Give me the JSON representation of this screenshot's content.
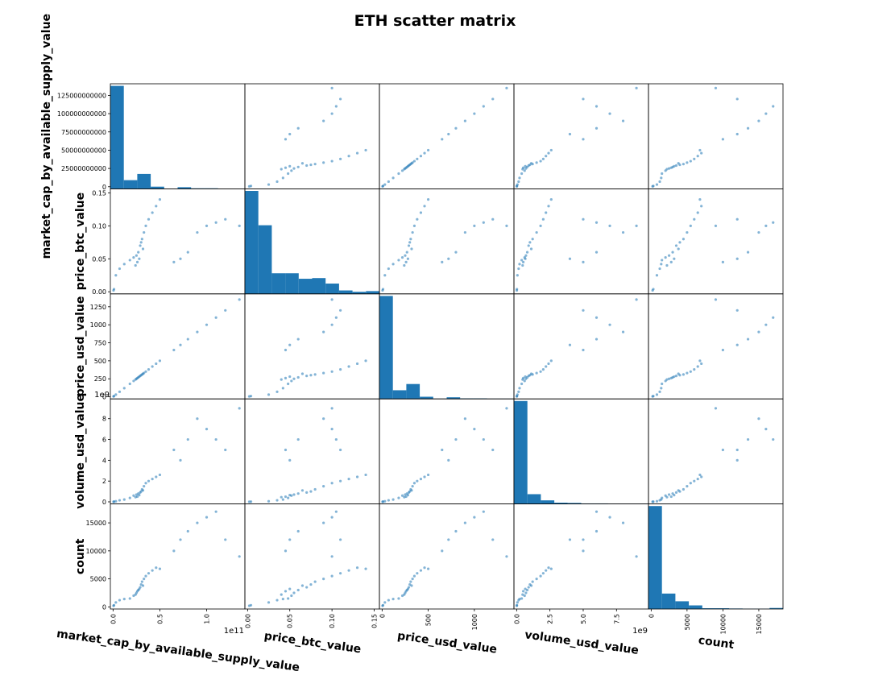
{
  "title": "ETH scatter matrix",
  "chart_data": {
    "type": "scatter",
    "subtype": "scatter-matrix",
    "title": "ETH scatter matrix",
    "grid": false,
    "colors": {
      "marker": "#1f77b4",
      "hist": "#1f77b4"
    },
    "variables": [
      {
        "name": "market_cap_by_available_supply_value",
        "range": [
          0,
          138000000000
        ],
        "x_ticks": {
          "values": [
            0,
            50000000000,
            100000000000
          ],
          "labels": [
            "0.0",
            "0.5",
            "1.0"
          ],
          "offset": "1e11"
        },
        "y_ticks": {
          "values": [
            0,
            25000000000,
            50000000000,
            75000000000,
            100000000000,
            125000000000
          ],
          "labels": [
            "0",
            "25000000000",
            "50000000000",
            "75000000000",
            "100000000000",
            "125000000000"
          ]
        },
        "hist_counts": [
          380,
          32,
          55,
          8,
          1,
          6,
          2,
          2,
          1,
          1
        ]
      },
      {
        "name": "price_btc_value",
        "range": [
          0,
          0.153
        ],
        "x_ticks": {
          "values": [
            0,
            0.05,
            0.1,
            0.15
          ],
          "labels": [
            "0.00",
            "0.05",
            "0.10",
            "0.15"
          ]
        },
        "y_ticks": {
          "values": [
            0,
            0.05,
            0.1,
            0.15
          ],
          "labels": [
            "0.00",
            "0.05",
            "0.10",
            "0.15"
          ]
        },
        "hist_counts": [
          150,
          100,
          30,
          30,
          22,
          23,
          15,
          5,
          3,
          4
        ]
      },
      {
        "name": "price_usd_value",
        "range": [
          0,
          1400
        ],
        "x_ticks": {
          "values": [
            0,
            500,
            1000
          ],
          "labels": [
            "0",
            "500",
            "1000"
          ]
        },
        "y_ticks": {
          "values": [
            0,
            250,
            500,
            750,
            1000,
            1250
          ],
          "labels": [
            "0",
            "250",
            "500",
            "750",
            "1000",
            "1250"
          ]
        },
        "hist_counts": [
          380,
          32,
          55,
          8,
          1,
          6,
          2,
          2,
          1,
          1
        ]
      },
      {
        "name": "volume_usd_value",
        "range": [
          0,
          9700000000
        ],
        "x_ticks": {
          "values": [
            0,
            2500000000,
            5000000000,
            7500000000
          ],
          "labels": [
            "0.0",
            "2.5",
            "5.0",
            "7.5"
          ],
          "offset": "1e9"
        },
        "y_ticks": {
          "values": [
            0,
            2000000000,
            4000000000,
            6000000000,
            8000000000
          ],
          "labels": [
            "0",
            "2",
            "4",
            "6",
            "8"
          ],
          "offset": "1e9"
        },
        "hist_counts": [
          400,
          38,
          14,
          5,
          4,
          2,
          2,
          1,
          1,
          1
        ]
      },
      {
        "name": "count",
        "range": [
          0,
          18000
        ],
        "x_ticks": {
          "values": [
            0,
            5000,
            10000,
            15000
          ],
          "labels": [
            "0",
            "5000",
            "10000",
            "15000"
          ]
        },
        "y_ticks": {
          "values": [
            0,
            5000,
            10000,
            15000
          ],
          "labels": [
            "0",
            "5000",
            "10000",
            "15000"
          ]
        },
        "hist_counts": [
          400,
          60,
          30,
          14,
          3,
          3,
          2,
          1,
          1,
          4
        ]
      }
    ],
    "points": [
      [
        3000000000,
        0.025,
        30,
        60000000,
        800
      ],
      [
        7000000000,
        0.035,
        70,
        150000000,
        1200
      ],
      [
        12000000000,
        0.042,
        120,
        220000000,
        1400
      ],
      [
        18000000000,
        0.048,
        180,
        380000000,
        1500
      ],
      [
        22000000000,
        0.052,
        220,
        600000000,
        2000
      ],
      [
        25000000000,
        0.055,
        250,
        700000000,
        2500
      ],
      [
        27000000000,
        0.06,
        270,
        800000000,
        3000
      ],
      [
        29000000000,
        0.07,
        290,
        900000000,
        3500
      ],
      [
        30000000000,
        0.075,
        300,
        1000000000,
        4000
      ],
      [
        31000000000,
        0.08,
        310,
        1200000000,
        4500
      ],
      [
        33000000000,
        0.09,
        330,
        1500000000,
        5000
      ],
      [
        35000000000,
        0.1,
        350,
        1800000000,
        5500
      ],
      [
        38000000000,
        0.11,
        380,
        2000000000,
        6000
      ],
      [
        42000000000,
        0.12,
        420,
        2200000000,
        6500
      ],
      [
        46000000000,
        0.13,
        460,
        2400000000,
        7000
      ],
      [
        50000000000,
        0.14,
        500,
        2600000000,
        6800
      ],
      [
        26000000000,
        0.045,
        260,
        500000000,
        2800
      ],
      [
        28000000000,
        0.05,
        280,
        650000000,
        3200
      ],
      [
        32000000000,
        0.065,
        320,
        1100000000,
        3800
      ],
      [
        24000000000,
        0.04,
        240,
        450000000,
        2200
      ],
      [
        65000000000,
        0.045,
        650,
        5000000000,
        10000
      ],
      [
        72000000000,
        0.05,
        720,
        4000000000,
        12000
      ],
      [
        80000000000,
        0.06,
        800,
        6000000000,
        13500
      ],
      [
        90000000000,
        0.09,
        900,
        8000000000,
        15000
      ],
      [
        100000000000,
        0.1,
        1000,
        7000000000,
        16000
      ],
      [
        110000000000,
        0.105,
        1100,
        6000000000,
        17000
      ],
      [
        120000000000,
        0.11,
        1200,
        5000000000,
        12000
      ],
      [
        135000000000,
        0.1,
        1350,
        9000000000,
        9000
      ],
      [
        1000000000,
        0.004,
        10,
        20000000,
        300
      ],
      [
        500000000,
        0.002,
        5,
        10000000,
        200
      ]
    ]
  }
}
